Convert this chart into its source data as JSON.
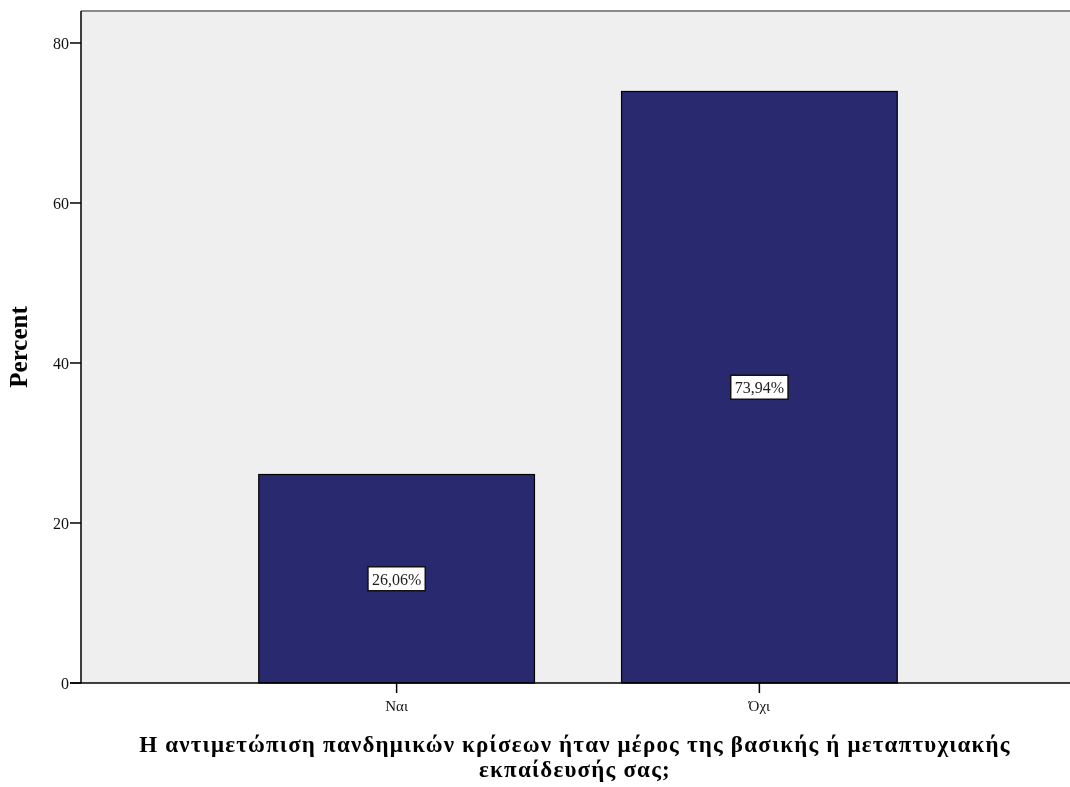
{
  "chart_data": {
    "type": "bar",
    "categories": [
      "Ναι",
      "Όχι"
    ],
    "values": [
      26.06,
      73.94
    ],
    "color": "#29296f",
    "ylim": [
      0,
      84
    ],
    "yticks": [
      0,
      20,
      40,
      60,
      80
    ],
    "ylabel": "Percent",
    "xlabel": "Η αντιμετώπιση πανδημικών κρίσεων ήταν μέρος της βασικής ή μεταπτυχιακής εκπαίδευσής σας;",
    "value_labels": [
      "26,06%",
      "73,94%"
    ]
  }
}
